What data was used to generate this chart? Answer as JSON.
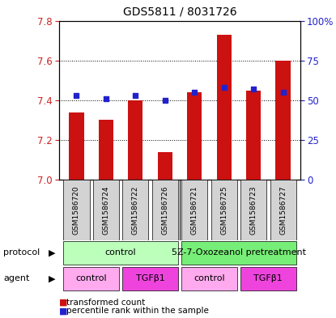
{
  "title": "GDS5811 / 8031726",
  "samples": [
    "GSM1586720",
    "GSM1586724",
    "GSM1586722",
    "GSM1586726",
    "GSM1586721",
    "GSM1586725",
    "GSM1586723",
    "GSM1586727"
  ],
  "transformed_count": [
    7.34,
    7.3,
    7.4,
    7.14,
    7.44,
    7.73,
    7.45,
    7.6
  ],
  "percentile_rank": [
    53,
    51,
    53,
    50,
    55,
    58,
    57,
    55
  ],
  "ylim_left": [
    7.0,
    7.8
  ],
  "ylim_right": [
    0,
    100
  ],
  "yticks_left": [
    7.0,
    7.2,
    7.4,
    7.6,
    7.8
  ],
  "yticks_right": [
    0,
    25,
    50,
    75,
    100
  ],
  "ytick_labels_right": [
    "0",
    "25",
    "50",
    "75",
    "100%"
  ],
  "bar_color": "#cc1111",
  "dot_color": "#2222cc",
  "bar_width": 0.5,
  "protocol_labels": [
    "control",
    "5Z-7-Oxozeanol pretreatment"
  ],
  "protocol_colors": [
    "#bbffbb",
    "#77ee77"
  ],
  "agent_labels": [
    "control",
    "TGFβ1",
    "control",
    "TGFβ1"
  ],
  "agent_colors": [
    "#ffaaee",
    "#ee44dd",
    "#ffaaee",
    "#ee44dd"
  ],
  "legend_bar_label": "transformed count",
  "legend_dot_label": "percentile rank within the sample"
}
